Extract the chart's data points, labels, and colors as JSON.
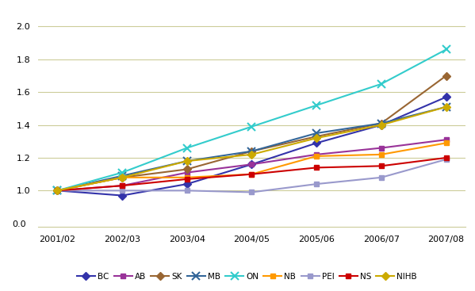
{
  "x_labels": [
    "2001/02",
    "2002/03",
    "2003/04",
    "2004/05",
    "2005/06",
    "2006/07",
    "2007/08"
  ],
  "series": {
    "BC": [
      1.0,
      0.97,
      1.04,
      1.16,
      1.29,
      1.4,
      1.57
    ],
    "AB": [
      1.0,
      1.03,
      1.11,
      1.16,
      1.22,
      1.26,
      1.31
    ],
    "SK": [
      1.0,
      1.08,
      1.13,
      1.24,
      1.33,
      1.41,
      1.7
    ],
    "MB": [
      1.0,
      1.09,
      1.18,
      1.24,
      1.35,
      1.41,
      1.51
    ],
    "ON": [
      1.0,
      1.11,
      1.26,
      1.39,
      1.52,
      1.65,
      1.86
    ],
    "NB": [
      1.0,
      1.08,
      1.08,
      1.1,
      1.21,
      1.22,
      1.29
    ],
    "PEI": [
      1.0,
      1.0,
      1.0,
      0.99,
      1.04,
      1.08,
      1.19
    ],
    "NS": [
      1.0,
      1.03,
      1.07,
      1.1,
      1.14,
      1.15,
      1.2
    ],
    "NIHB": [
      1.0,
      1.08,
      1.18,
      1.22,
      1.32,
      1.4,
      1.51
    ]
  },
  "colors": {
    "BC": "#3333aa",
    "AB": "#993399",
    "SK": "#996633",
    "MB": "#336699",
    "ON": "#33cccc",
    "NB": "#ff9900",
    "PEI": "#9999cc",
    "NS": "#cc0000",
    "NIHB": "#ccaa00"
  },
  "markers": {
    "BC": "D",
    "AB": "s",
    "SK": "D",
    "MB": "x",
    "ON": "x",
    "NB": "s",
    "PEI": "s",
    "NS": "s",
    "NIHB": "D"
  },
  "ylim": [
    0.92,
    2.02
  ],
  "yticks_main": [
    1.0,
    1.2,
    1.4,
    1.6,
    1.8,
    2.0
  ],
  "background_color": "#ffffff",
  "grid_color": "#cccc99",
  "line_color_spine": "#cccc99"
}
